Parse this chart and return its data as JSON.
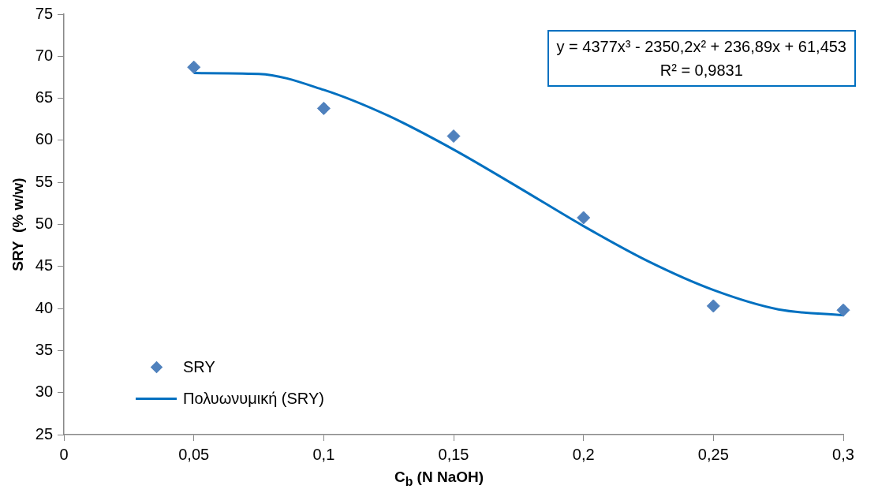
{
  "chart_data": {
    "type": "scatter",
    "xlabel": "C$_{b}$ (N NaOH)",
    "ylabel": "SRY  (% w/w)",
    "annotations": [
      "y = 4377x³ - 2350,2x² + 236,89x + 61,453",
      "R² = 0,9831"
    ],
    "xlim": [
      0,
      0.3
    ],
    "xticks": [
      0,
      {
        "value": 0.05,
        "label": "0,05"
      },
      {
        "value": 0.1,
        "label": "0,1"
      },
      {
        "value": 0.15,
        "label": "0,15"
      },
      {
        "value": 0.2,
        "label": "0,2"
      },
      {
        "value": 0.25,
        "label": "0,25"
      },
      {
        "value": 0.3,
        "label": "0,3"
      }
    ],
    "ylim": [
      25,
      75
    ],
    "yticks": [
      25,
      30,
      35,
      40,
      45,
      50,
      55,
      60,
      65,
      70,
      75
    ],
    "grid": false,
    "legend": "bottom left",
    "series": [
      {
        "name": "SRY",
        "marker": "diamond",
        "color": "#4f81bd",
        "x": [
          0.05,
          0.1,
          0.15,
          0.2,
          0.25,
          0.3
        ],
        "values": [
          68.7,
          63.8,
          60.5,
          50.8,
          40.3,
          39.8
        ]
      },
      {
        "name": "Πολυωνυμική (SRY)",
        "type": "line",
        "marker": "none",
        "color": "#0070c0",
        "x": [
          0.05,
          0.075,
          0.1,
          0.125,
          0.15,
          0.175,
          0.2,
          0.225,
          0.25,
          0.275,
          0.3
        ],
        "values": [
          68.0,
          67.9,
          66.0,
          62.9,
          58.9,
          54.4,
          49.8,
          45.6,
          42.2,
          39.9,
          39.2
        ]
      }
    ]
  }
}
